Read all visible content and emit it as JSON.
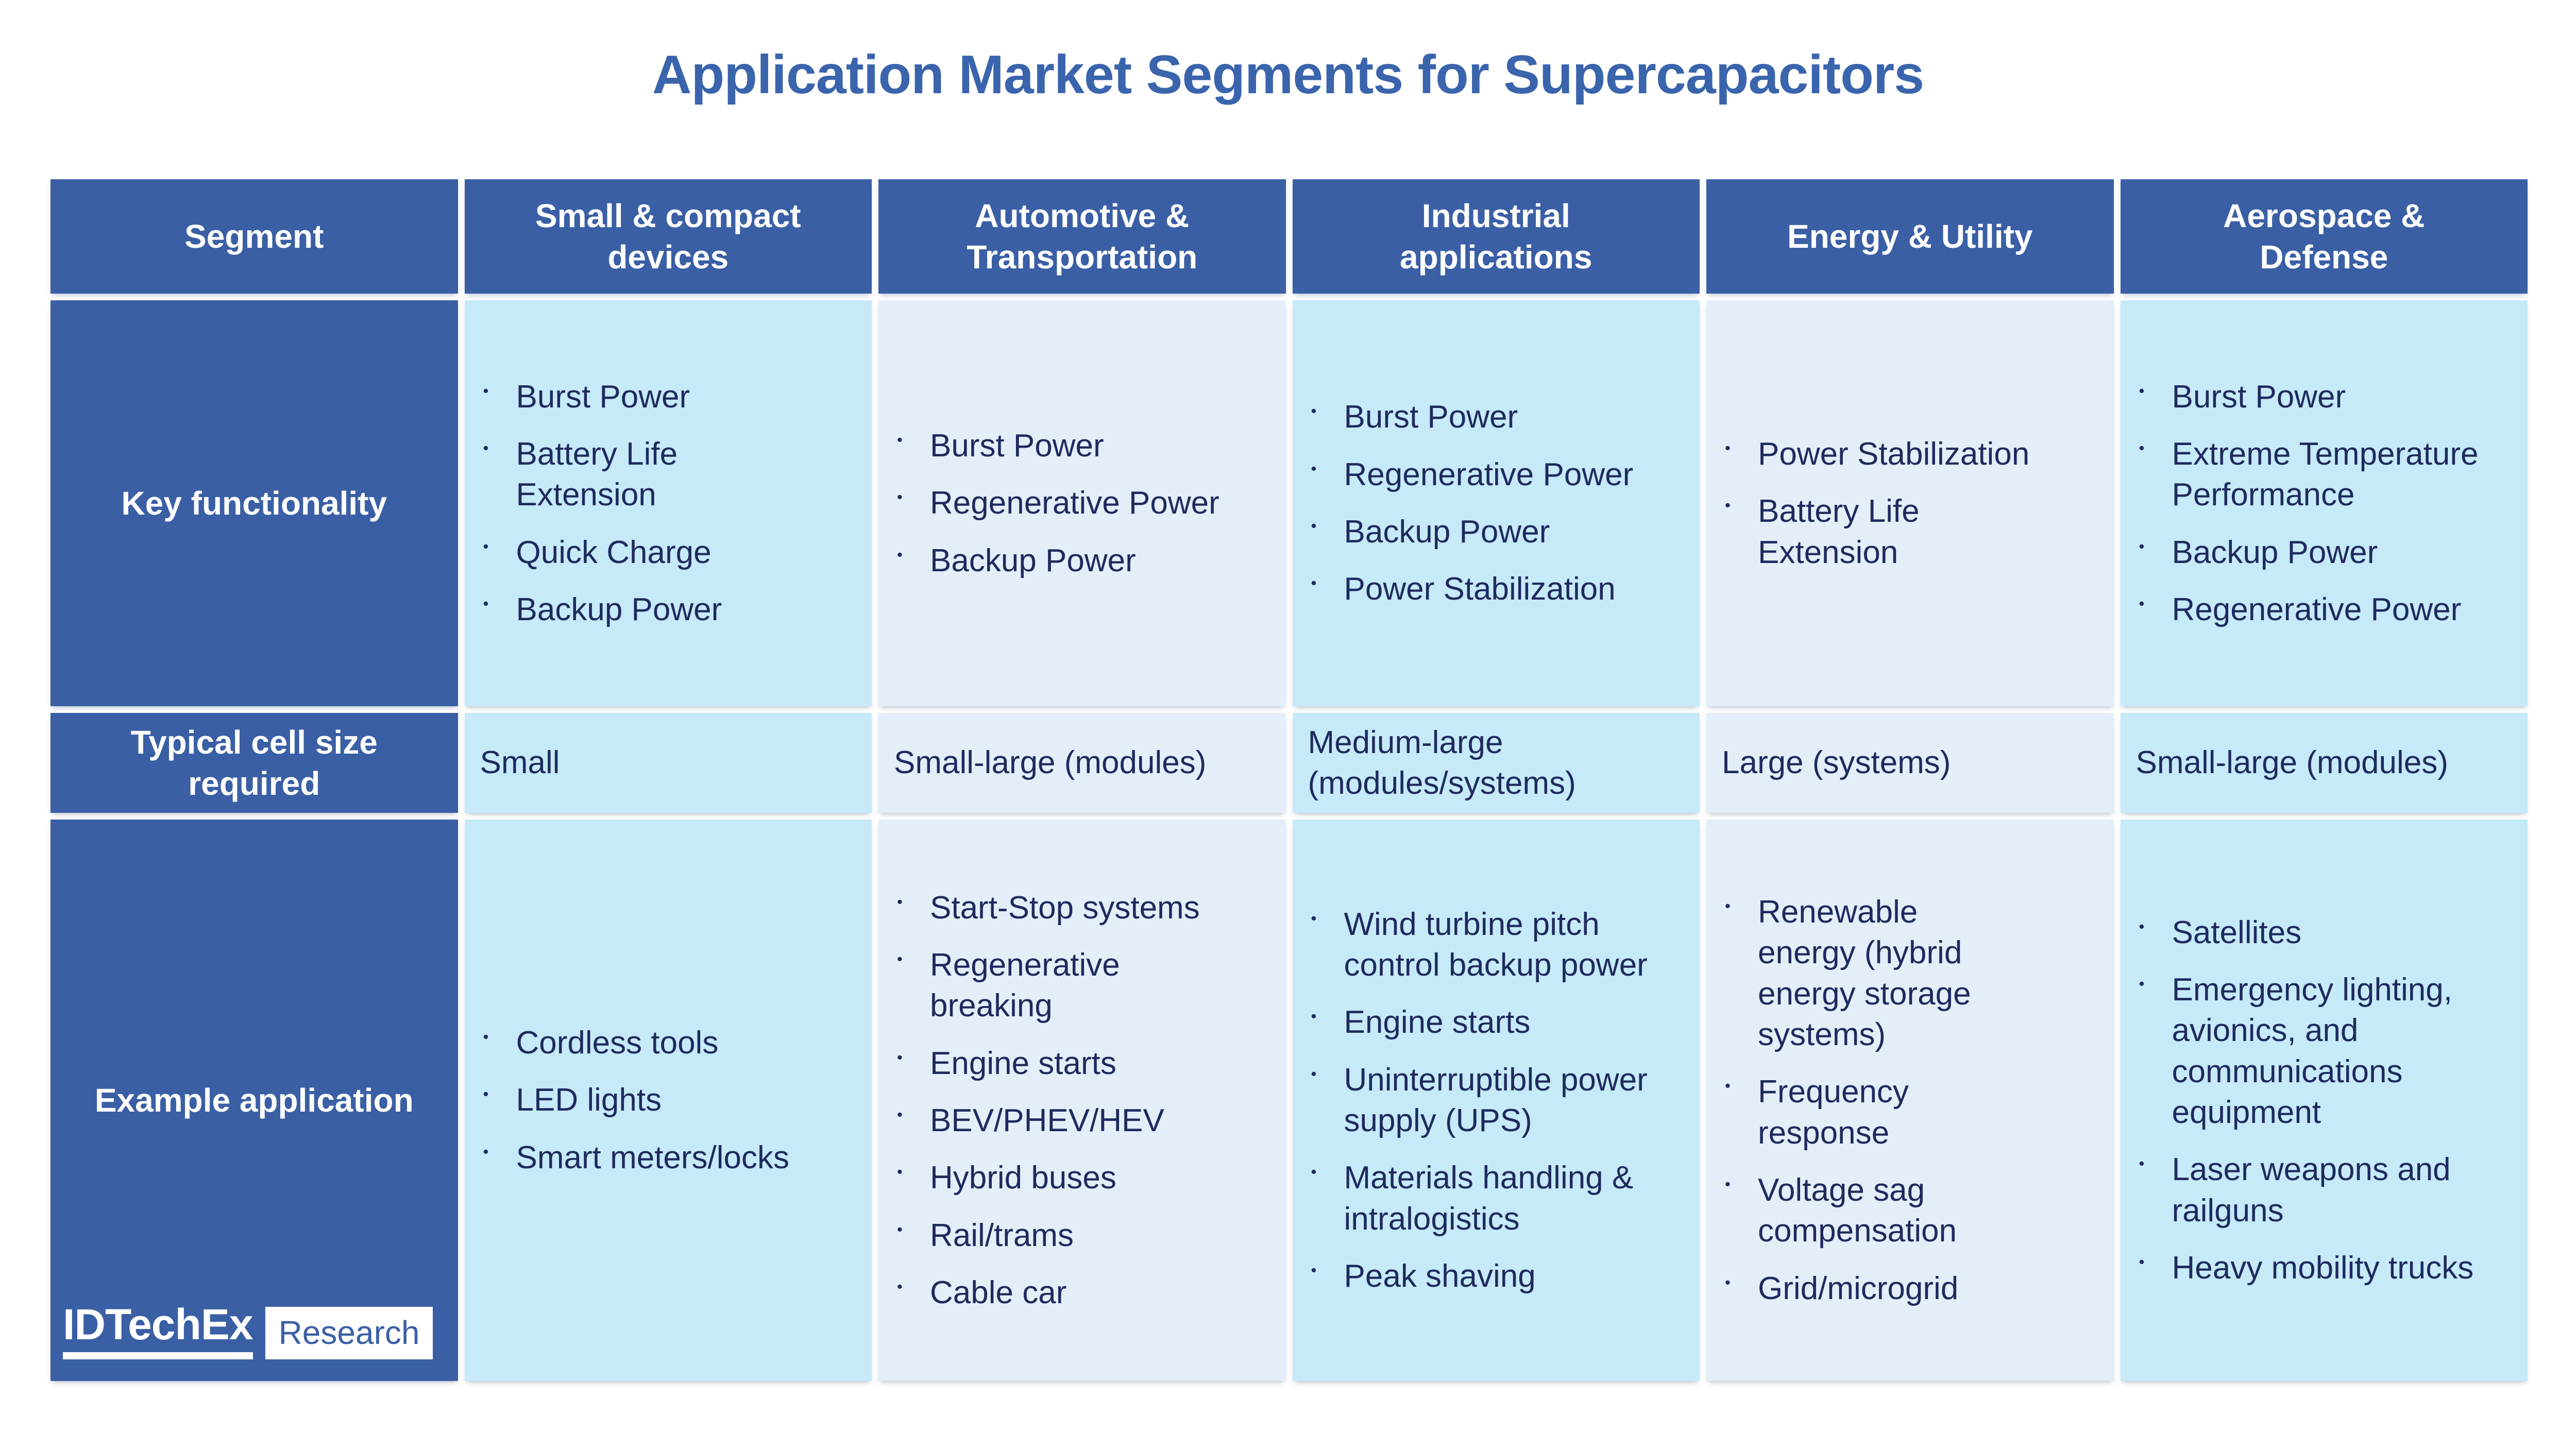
{
  "title": "Application Market Segments for Supercapacitors",
  "chart_data": {
    "type": "table",
    "title": "Application Market Segments for Supercapacitors",
    "columns": [
      "Segment",
      "Small & compact devices",
      "Automotive & Transportation",
      "Industrial applications",
      "Energy & Utility",
      "Aerospace & Defense"
    ],
    "rows": [
      {
        "label": "Key functionality",
        "cells": [
          [
            "Burst Power",
            "Battery Life Extension",
            "Quick Charge",
            "Backup Power"
          ],
          [
            "Burst Power",
            "Regenerative Power",
            "Backup Power"
          ],
          [
            "Burst Power",
            "Regenerative Power",
            "Backup Power",
            "Power Stabilization"
          ],
          [
            "Power Stabilization",
            "Battery Life Extension"
          ],
          [
            "Burst Power",
            "Extreme Temperature Performance",
            "Backup Power",
            "Regenerative Power"
          ]
        ]
      },
      {
        "label": "Typical cell size required",
        "cells": [
          "Small",
          "Small-large (modules)",
          "Medium-large (modules/systems)",
          "Large (systems)",
          "Small-large (modules)"
        ]
      },
      {
        "label": "Example application",
        "cells": [
          [
            "Cordless tools",
            "LED lights",
            "Smart meters/locks"
          ],
          [
            "Start-Stop systems",
            "Regenerative breaking",
            "Engine starts",
            "BEV/PHEV/HEV",
            "Hybrid buses",
            "Rail/trams",
            "Cable car"
          ],
          [
            "Wind turbine pitch control backup power",
            "Engine starts",
            "Uninterruptible power supply (UPS)",
            "Materials handling & intralogistics",
            "Peak shaving"
          ],
          [
            "Renewable energy (hybrid energy storage systems)",
            "Frequency response",
            "Voltage sag compensation",
            "Grid/microgrid"
          ],
          [
            "Satellites",
            "Emergency lighting, avionics, and communications equipment",
            "Laser weapons and railguns",
            "Heavy mobility trucks"
          ]
        ]
      }
    ]
  },
  "logo": {
    "brand": "IDTechEx",
    "label": "Research"
  },
  "colors": {
    "header_blue": "#3A5FA5",
    "cell_cyan": "#C6EAF8",
    "cell_pale": "#E4EEF8",
    "text_navy": "#1E2A5E",
    "title_blue": "#3A64AC",
    "background": "#FFFFFF"
  }
}
